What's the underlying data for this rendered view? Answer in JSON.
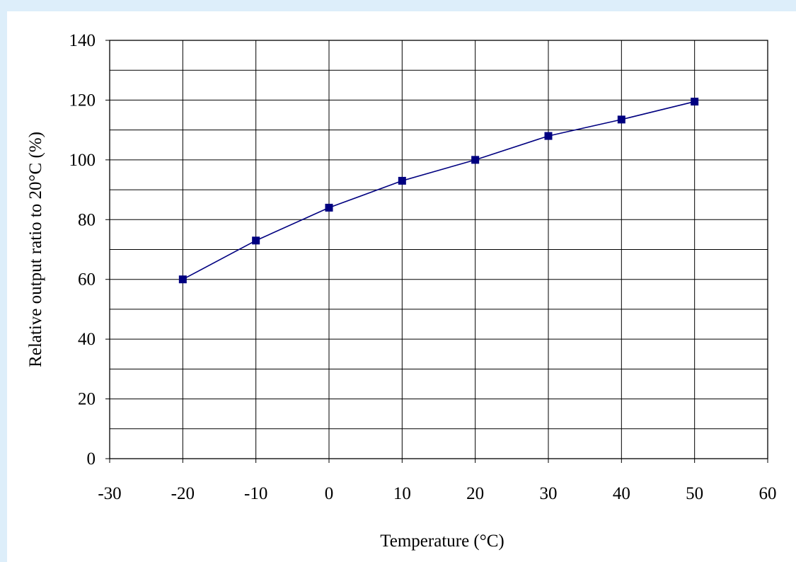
{
  "chart_data": {
    "type": "line",
    "title": "",
    "xlabel": "Temperature (°C)",
    "ylabel": "Relative output ratio to 20°C (%)",
    "xlim": [
      -30,
      60
    ],
    "ylim": [
      0,
      140
    ],
    "x_ticks": [
      "-30",
      "-20",
      "-10",
      "0",
      "10",
      "20",
      "30",
      "40",
      "50",
      "60"
    ],
    "y_ticks": [
      "0",
      "20",
      "40",
      "60",
      "80",
      "100",
      "120",
      "140"
    ],
    "grid": true,
    "legend": "none",
    "series": [
      {
        "x": [
          -20,
          -10,
          0,
          10,
          20,
          30,
          40,
          50
        ],
        "y": [
          60,
          73,
          84,
          93,
          100,
          108,
          113.5,
          119.5
        ],
        "color": "#000080",
        "marker": "square"
      }
    ]
  }
}
